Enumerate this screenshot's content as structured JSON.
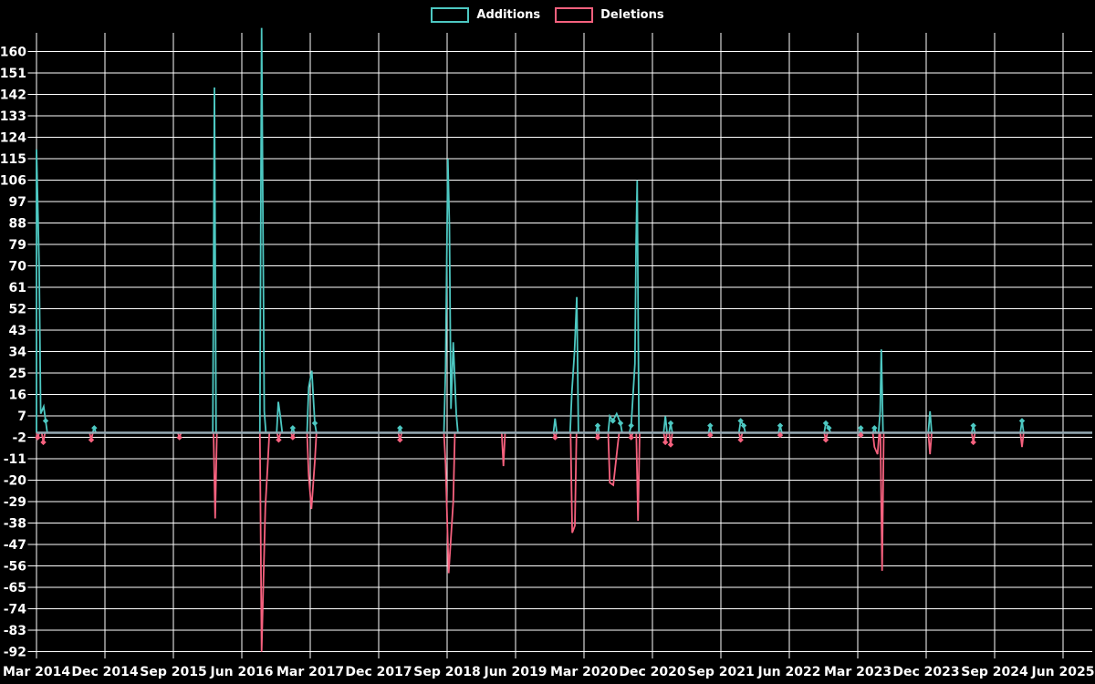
{
  "page": {
    "background": "#000000",
    "text_color": "#ffffff",
    "grid_color": "#ffffff"
  },
  "legend": {
    "position": "top-center",
    "items": [
      {
        "label": "Additions",
        "color": "#4DC8C2"
      },
      {
        "label": "Deletions",
        "color": "#F6617E"
      }
    ]
  },
  "chart_data": {
    "type": "line",
    "title": "",
    "xlabel": "",
    "ylabel": "",
    "grid": true,
    "legend_position": "top-center",
    "x_unit": "months since Mar 2014 (weekly spiky series, labels every 9 months)",
    "x_range_months": [
      0,
      135
    ],
    "ylim": [
      -92,
      167
    ],
    "y_tick_step": 9,
    "y_ticks": [
      160,
      151,
      142,
      133,
      124,
      115,
      106,
      97,
      88,
      79,
      70,
      61,
      52,
      43,
      34,
      25,
      16,
      7,
      -2,
      -11,
      -20,
      -29,
      -38,
      -47,
      -56,
      -65,
      -74,
      -83,
      -92
    ],
    "x_tick_labels": [
      "Mar 2014",
      "Dec 2014",
      "Sep 2015",
      "Jun 2016",
      "Mar 2017",
      "Dec 2017",
      "Sep 2018",
      "Jun 2019",
      "Mar 2020",
      "Dec 2020",
      "Sep 2021",
      "Jun 2022",
      "Mar 2023",
      "Dec 2023",
      "Sep 2024",
      "Jun 2025"
    ],
    "zero_line_color": "#96AAB4",
    "series": [
      {
        "name": "Additions",
        "color": "#4DC8C2",
        "baseline": 0,
        "spikes": [
          [
            0,
            119
          ],
          [
            0.35,
            70
          ],
          [
            0.55,
            8
          ],
          [
            0.95,
            11
          ],
          [
            1.2,
            5
          ],
          [
            7.6,
            2
          ],
          [
            23.4,
            145
          ],
          [
            29.6,
            170
          ],
          [
            29.95,
            9
          ],
          [
            31.8,
            13
          ],
          [
            32.1,
            6
          ],
          [
            33.7,
            2
          ],
          [
            35.8,
            19
          ],
          [
            36.2,
            26
          ],
          [
            36.6,
            4
          ],
          [
            47.8,
            2
          ],
          [
            53.8,
            27
          ],
          [
            54.1,
            115
          ],
          [
            54.3,
            87
          ],
          [
            54.5,
            10
          ],
          [
            54.8,
            38
          ],
          [
            55.2,
            8
          ],
          [
            68.2,
            6
          ],
          [
            70.4,
            17
          ],
          [
            70.75,
            34
          ],
          [
            71.05,
            57
          ],
          [
            73.8,
            3
          ],
          [
            75.4,
            7
          ],
          [
            75.8,
            5
          ],
          [
            76.3,
            8
          ],
          [
            76.8,
            4
          ],
          [
            78.2,
            3
          ],
          [
            78.7,
            29
          ],
          [
            78.85,
            80
          ],
          [
            79,
            106
          ],
          [
            82.7,
            7
          ],
          [
            83.4,
            4
          ],
          [
            88.6,
            3
          ],
          [
            92.6,
            5
          ],
          [
            93,
            3
          ],
          [
            97.8,
            3
          ],
          [
            103.8,
            4
          ],
          [
            104.2,
            2
          ],
          [
            108.4,
            2
          ],
          [
            110.2,
            2
          ],
          [
            110.95,
            9
          ],
          [
            111.1,
            35
          ],
          [
            117.5,
            9
          ],
          [
            123.2,
            3
          ],
          [
            129.6,
            5
          ]
        ]
      },
      {
        "name": "Deletions",
        "color": "#F6617E",
        "baseline": 0,
        "spikes": [
          [
            0.15,
            -2
          ],
          [
            0.9,
            -4
          ],
          [
            7.2,
            -3
          ],
          [
            18.8,
            -2
          ],
          [
            23.5,
            -36
          ],
          [
            29.6,
            -92
          ],
          [
            30.1,
            -31
          ],
          [
            30.4,
            -14
          ],
          [
            31.85,
            -3
          ],
          [
            33.7,
            -2
          ],
          [
            35.8,
            -18
          ],
          [
            36.15,
            -32
          ],
          [
            36.6,
            -12
          ],
          [
            47.8,
            -3
          ],
          [
            53.8,
            -13
          ],
          [
            54.2,
            -59
          ],
          [
            54.8,
            -29
          ],
          [
            61.4,
            -14
          ],
          [
            68.2,
            -2
          ],
          [
            70.45,
            -42
          ],
          [
            70.8,
            -39
          ],
          [
            73.8,
            -2
          ],
          [
            75.4,
            -21
          ],
          [
            75.85,
            -22
          ],
          [
            76.4,
            -6
          ],
          [
            78.2,
            -2
          ],
          [
            79.1,
            -37
          ],
          [
            82.7,
            -4
          ],
          [
            83.4,
            -5
          ],
          [
            88.6,
            -1
          ],
          [
            92.6,
            -3
          ],
          [
            97.8,
            -1
          ],
          [
            103.8,
            -3
          ],
          [
            108.4,
            -1
          ],
          [
            110.2,
            -6
          ],
          [
            110.6,
            -9
          ],
          [
            111.2,
            -58
          ],
          [
            117.5,
            -9
          ],
          [
            123.2,
            -4
          ],
          [
            129.6,
            -6
          ]
        ]
      }
    ]
  }
}
